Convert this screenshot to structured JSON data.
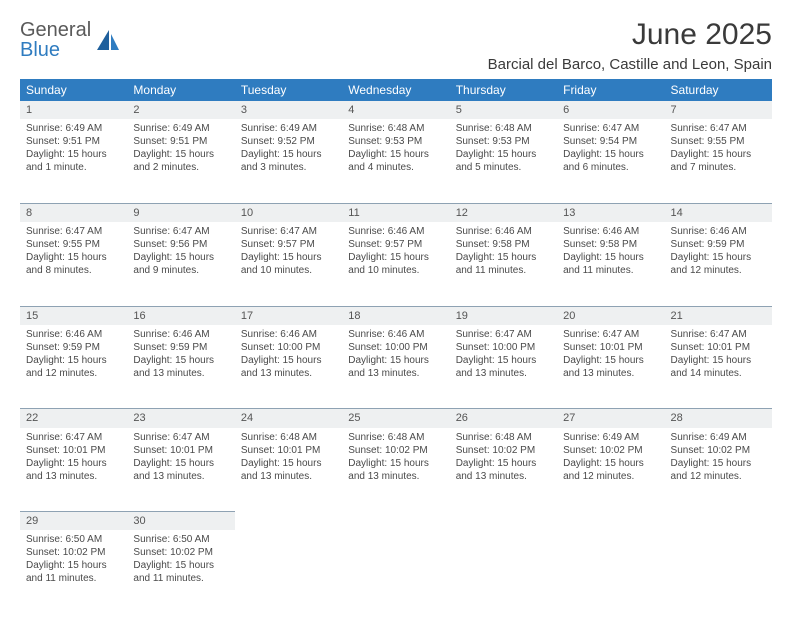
{
  "brand": {
    "line1": "General",
    "line2": "Blue",
    "color1": "#5a5a5a",
    "color2": "#2f7cc0"
  },
  "title": "June 2025",
  "location": "Barcial del Barco, Castille and Leon, Spain",
  "header_bg": "#2f7cc0",
  "daynum_bg": "#eef0f1",
  "border_color": "#8ea2b3",
  "weekdays": [
    "Sunday",
    "Monday",
    "Tuesday",
    "Wednesday",
    "Thursday",
    "Friday",
    "Saturday"
  ],
  "weeks": [
    [
      {
        "n": "1",
        "sr": "6:49 AM",
        "ss": "9:51 PM",
        "dl": "15 hours and 1 minute."
      },
      {
        "n": "2",
        "sr": "6:49 AM",
        "ss": "9:51 PM",
        "dl": "15 hours and 2 minutes."
      },
      {
        "n": "3",
        "sr": "6:49 AM",
        "ss": "9:52 PM",
        "dl": "15 hours and 3 minutes."
      },
      {
        "n": "4",
        "sr": "6:48 AM",
        "ss": "9:53 PM",
        "dl": "15 hours and 4 minutes."
      },
      {
        "n": "5",
        "sr": "6:48 AM",
        "ss": "9:53 PM",
        "dl": "15 hours and 5 minutes."
      },
      {
        "n": "6",
        "sr": "6:47 AM",
        "ss": "9:54 PM",
        "dl": "15 hours and 6 minutes."
      },
      {
        "n": "7",
        "sr": "6:47 AM",
        "ss": "9:55 PM",
        "dl": "15 hours and 7 minutes."
      }
    ],
    [
      {
        "n": "8",
        "sr": "6:47 AM",
        "ss": "9:55 PM",
        "dl": "15 hours and 8 minutes."
      },
      {
        "n": "9",
        "sr": "6:47 AM",
        "ss": "9:56 PM",
        "dl": "15 hours and 9 minutes."
      },
      {
        "n": "10",
        "sr": "6:47 AM",
        "ss": "9:57 PM",
        "dl": "15 hours and 10 minutes."
      },
      {
        "n": "11",
        "sr": "6:46 AM",
        "ss": "9:57 PM",
        "dl": "15 hours and 10 minutes."
      },
      {
        "n": "12",
        "sr": "6:46 AM",
        "ss": "9:58 PM",
        "dl": "15 hours and 11 minutes."
      },
      {
        "n": "13",
        "sr": "6:46 AM",
        "ss": "9:58 PM",
        "dl": "15 hours and 11 minutes."
      },
      {
        "n": "14",
        "sr": "6:46 AM",
        "ss": "9:59 PM",
        "dl": "15 hours and 12 minutes."
      }
    ],
    [
      {
        "n": "15",
        "sr": "6:46 AM",
        "ss": "9:59 PM",
        "dl": "15 hours and 12 minutes."
      },
      {
        "n": "16",
        "sr": "6:46 AM",
        "ss": "9:59 PM",
        "dl": "15 hours and 13 minutes."
      },
      {
        "n": "17",
        "sr": "6:46 AM",
        "ss": "10:00 PM",
        "dl": "15 hours and 13 minutes."
      },
      {
        "n": "18",
        "sr": "6:46 AM",
        "ss": "10:00 PM",
        "dl": "15 hours and 13 minutes."
      },
      {
        "n": "19",
        "sr": "6:47 AM",
        "ss": "10:00 PM",
        "dl": "15 hours and 13 minutes."
      },
      {
        "n": "20",
        "sr": "6:47 AM",
        "ss": "10:01 PM",
        "dl": "15 hours and 13 minutes."
      },
      {
        "n": "21",
        "sr": "6:47 AM",
        "ss": "10:01 PM",
        "dl": "15 hours and 14 minutes."
      }
    ],
    [
      {
        "n": "22",
        "sr": "6:47 AM",
        "ss": "10:01 PM",
        "dl": "15 hours and 13 minutes."
      },
      {
        "n": "23",
        "sr": "6:47 AM",
        "ss": "10:01 PM",
        "dl": "15 hours and 13 minutes."
      },
      {
        "n": "24",
        "sr": "6:48 AM",
        "ss": "10:01 PM",
        "dl": "15 hours and 13 minutes."
      },
      {
        "n": "25",
        "sr": "6:48 AM",
        "ss": "10:02 PM",
        "dl": "15 hours and 13 minutes."
      },
      {
        "n": "26",
        "sr": "6:48 AM",
        "ss": "10:02 PM",
        "dl": "15 hours and 13 minutes."
      },
      {
        "n": "27",
        "sr": "6:49 AM",
        "ss": "10:02 PM",
        "dl": "15 hours and 12 minutes."
      },
      {
        "n": "28",
        "sr": "6:49 AM",
        "ss": "10:02 PM",
        "dl": "15 hours and 12 minutes."
      }
    ],
    [
      {
        "n": "29",
        "sr": "6:50 AM",
        "ss": "10:02 PM",
        "dl": "15 hours and 11 minutes."
      },
      {
        "n": "30",
        "sr": "6:50 AM",
        "ss": "10:02 PM",
        "dl": "15 hours and 11 minutes."
      },
      null,
      null,
      null,
      null,
      null
    ]
  ],
  "labels": {
    "sunrise": "Sunrise:",
    "sunset": "Sunset:",
    "daylight": "Daylight:"
  }
}
